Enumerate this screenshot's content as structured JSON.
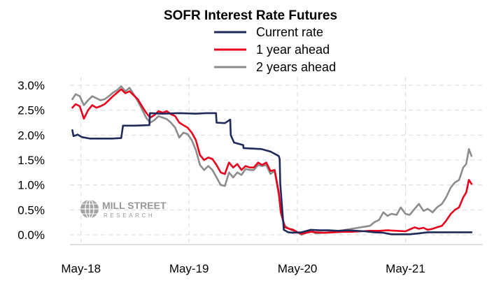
{
  "chart_data": {
    "type": "line",
    "title": "SOFR Interest Rate Futures",
    "xlabel": "",
    "ylabel": "",
    "ylim": [
      0,
      3.0
    ],
    "yticks": [
      "0.0%",
      "0.5%",
      "1.0%",
      "1.5%",
      "2.0%",
      "2.5%",
      "3.0%"
    ],
    "xticks": [
      "May-18",
      "May-19",
      "May-20",
      "May-21"
    ],
    "grid": true,
    "legend": "top-center",
    "series": [
      {
        "name": "Current rate",
        "color": "#1f2a5a",
        "points": [
          [
            "2018-04-02",
            2.1
          ],
          [
            "2018-04-06",
            1.98
          ],
          [
            "2018-04-20",
            2.01
          ],
          [
            "2018-05-04",
            1.96
          ],
          [
            "2018-06-01",
            1.93
          ],
          [
            "2018-07-02",
            1.93
          ],
          [
            "2018-08-15",
            1.93
          ],
          [
            "2018-09-14",
            1.94
          ],
          [
            "2018-09-20",
            2.19
          ],
          [
            "2018-10-31",
            2.19
          ],
          [
            "2018-12-18",
            2.2
          ],
          [
            "2018-12-20",
            2.44
          ],
          [
            "2019-02-01",
            2.43
          ],
          [
            "2019-04-01",
            2.44
          ],
          [
            "2019-05-24",
            2.43
          ],
          [
            "2019-06-28",
            2.44
          ],
          [
            "2019-07-31",
            2.44
          ],
          [
            "2019-08-02",
            2.25
          ],
          [
            "2019-08-30",
            2.24
          ],
          [
            "2019-09-17",
            2.31
          ],
          [
            "2019-09-19",
            2.0
          ],
          [
            "2019-09-30",
            1.85
          ],
          [
            "2019-10-31",
            1.8
          ],
          [
            "2019-11-01",
            1.74
          ],
          [
            "2019-12-31",
            1.72
          ],
          [
            "2020-01-31",
            1.67
          ],
          [
            "2020-02-28",
            1.58
          ],
          [
            "2020-03-02",
            1.52
          ],
          [
            "2020-03-04",
            1.03
          ],
          [
            "2020-03-16",
            0.1
          ],
          [
            "2020-03-31",
            0.05
          ],
          [
            "2020-04-15",
            0.04
          ],
          [
            "2020-05-15",
            0.05
          ],
          [
            "2020-06-15",
            0.1
          ],
          [
            "2020-07-15",
            0.09
          ],
          [
            "2020-08-15",
            0.09
          ],
          [
            "2020-09-15",
            0.08
          ],
          [
            "2020-10-15",
            0.09
          ],
          [
            "2020-11-15",
            0.08
          ],
          [
            "2020-12-15",
            0.07
          ],
          [
            "2021-01-15",
            0.05
          ],
          [
            "2021-02-15",
            0.04
          ],
          [
            "2021-03-15",
            0.01
          ],
          [
            "2021-04-15",
            0.01
          ],
          [
            "2021-05-15",
            0.01
          ],
          [
            "2021-06-15",
            0.03
          ],
          [
            "2021-07-15",
            0.05
          ],
          [
            "2021-08-15",
            0.05
          ],
          [
            "2021-09-15",
            0.05
          ],
          [
            "2021-10-15",
            0.05
          ],
          [
            "2021-11-15",
            0.05
          ],
          [
            "2021-12-10",
            0.05
          ]
        ]
      },
      {
        "name": "1 year ahead",
        "color": "#e8001c",
        "points": [
          [
            "2018-04-02",
            2.55
          ],
          [
            "2018-04-13",
            2.62
          ],
          [
            "2018-04-27",
            2.58
          ],
          [
            "2018-05-11",
            2.33
          ],
          [
            "2018-05-25",
            2.5
          ],
          [
            "2018-06-08",
            2.6
          ],
          [
            "2018-06-22",
            2.55
          ],
          [
            "2018-07-06",
            2.58
          ],
          [
            "2018-07-20",
            2.62
          ],
          [
            "2018-08-03",
            2.7
          ],
          [
            "2018-08-17",
            2.78
          ],
          [
            "2018-08-31",
            2.85
          ],
          [
            "2018-09-14",
            2.92
          ],
          [
            "2018-09-28",
            2.84
          ],
          [
            "2018-10-12",
            2.88
          ],
          [
            "2018-10-26",
            2.8
          ],
          [
            "2018-11-09",
            2.72
          ],
          [
            "2018-11-23",
            2.58
          ],
          [
            "2018-12-07",
            2.45
          ],
          [
            "2018-12-21",
            2.35
          ],
          [
            "2019-01-04",
            2.4
          ],
          [
            "2019-01-18",
            2.48
          ],
          [
            "2019-02-01",
            2.45
          ],
          [
            "2019-02-15",
            2.48
          ],
          [
            "2019-03-01",
            2.42
          ],
          [
            "2019-03-15",
            2.38
          ],
          [
            "2019-03-29",
            2.25
          ],
          [
            "2019-04-12",
            2.2
          ],
          [
            "2019-04-26",
            2.15
          ],
          [
            "2019-05-10",
            2.05
          ],
          [
            "2019-05-24",
            1.9
          ],
          [
            "2019-06-07",
            1.6
          ],
          [
            "2019-06-21",
            1.5
          ],
          [
            "2019-07-05",
            1.55
          ],
          [
            "2019-07-19",
            1.52
          ],
          [
            "2019-08-02",
            1.4
          ],
          [
            "2019-08-16",
            1.25
          ],
          [
            "2019-08-30",
            1.22
          ],
          [
            "2019-09-13",
            1.45
          ],
          [
            "2019-09-27",
            1.35
          ],
          [
            "2019-10-11",
            1.42
          ],
          [
            "2019-10-25",
            1.3
          ],
          [
            "2019-11-08",
            1.38
          ],
          [
            "2019-11-22",
            1.35
          ],
          [
            "2019-12-06",
            1.35
          ],
          [
            "2019-12-20",
            1.45
          ],
          [
            "2020-01-03",
            1.4
          ],
          [
            "2020-01-17",
            1.45
          ],
          [
            "2020-01-31",
            1.28
          ],
          [
            "2020-02-14",
            1.3
          ],
          [
            "2020-02-28",
            0.85
          ],
          [
            "2020-03-06",
            0.45
          ],
          [
            "2020-03-13",
            0.3
          ],
          [
            "2020-03-20",
            0.15
          ],
          [
            "2020-04-03",
            0.12
          ],
          [
            "2020-04-17",
            0.1
          ],
          [
            "2020-05-01",
            0.05
          ],
          [
            "2020-05-15",
            0.02
          ],
          [
            "2020-06-01",
            0.04
          ],
          [
            "2020-06-15",
            0.06
          ],
          [
            "2020-07-01",
            0.05
          ],
          [
            "2020-08-01",
            0.04
          ],
          [
            "2020-09-01",
            0.05
          ],
          [
            "2020-10-01",
            0.06
          ],
          [
            "2020-11-01",
            0.06
          ],
          [
            "2020-12-01",
            0.07
          ],
          [
            "2021-01-01",
            0.08
          ],
          [
            "2021-02-01",
            0.08
          ],
          [
            "2021-03-01",
            0.09
          ],
          [
            "2021-04-01",
            0.08
          ],
          [
            "2021-05-01",
            0.07
          ],
          [
            "2021-06-01",
            0.15
          ],
          [
            "2021-06-15",
            0.12
          ],
          [
            "2021-07-01",
            0.14
          ],
          [
            "2021-07-15",
            0.1
          ],
          [
            "2021-08-01",
            0.12
          ],
          [
            "2021-08-15",
            0.15
          ],
          [
            "2021-09-01",
            0.18
          ],
          [
            "2021-09-15",
            0.28
          ],
          [
            "2021-10-01",
            0.42
          ],
          [
            "2021-10-15",
            0.5
          ],
          [
            "2021-10-29",
            0.55
          ],
          [
            "2021-11-12",
            0.75
          ],
          [
            "2021-11-22",
            0.85
          ],
          [
            "2021-12-01",
            1.1
          ],
          [
            "2021-12-10",
            1.02
          ]
        ]
      },
      {
        "name": "2 years ahead",
        "color": "#8c8c8c",
        "points": [
          [
            "2018-04-02",
            2.72
          ],
          [
            "2018-04-13",
            2.82
          ],
          [
            "2018-04-27",
            2.78
          ],
          [
            "2018-05-11",
            2.6
          ],
          [
            "2018-05-25",
            2.7
          ],
          [
            "2018-06-08",
            2.78
          ],
          [
            "2018-06-22",
            2.74
          ],
          [
            "2018-07-06",
            2.7
          ],
          [
            "2018-07-20",
            2.72
          ],
          [
            "2018-08-03",
            2.78
          ],
          [
            "2018-08-17",
            2.85
          ],
          [
            "2018-08-31",
            2.9
          ],
          [
            "2018-09-14",
            2.98
          ],
          [
            "2018-09-28",
            2.88
          ],
          [
            "2018-10-12",
            2.95
          ],
          [
            "2018-10-26",
            2.82
          ],
          [
            "2018-11-09",
            2.68
          ],
          [
            "2018-11-23",
            2.52
          ],
          [
            "2018-12-07",
            2.35
          ],
          [
            "2018-12-21",
            2.25
          ],
          [
            "2019-01-04",
            2.3
          ],
          [
            "2019-01-18",
            2.38
          ],
          [
            "2019-02-01",
            2.35
          ],
          [
            "2019-02-15",
            2.32
          ],
          [
            "2019-03-01",
            2.25
          ],
          [
            "2019-03-15",
            2.15
          ],
          [
            "2019-03-29",
            1.95
          ],
          [
            "2019-04-12",
            2.05
          ],
          [
            "2019-04-26",
            2.02
          ],
          [
            "2019-05-10",
            1.9
          ],
          [
            "2019-05-24",
            1.7
          ],
          [
            "2019-06-07",
            1.4
          ],
          [
            "2019-06-21",
            1.3
          ],
          [
            "2019-07-05",
            1.38
          ],
          [
            "2019-07-19",
            1.3
          ],
          [
            "2019-08-02",
            1.15
          ],
          [
            "2019-08-16",
            1.0
          ],
          [
            "2019-08-30",
            0.98
          ],
          [
            "2019-09-13",
            1.25
          ],
          [
            "2019-09-27",
            1.15
          ],
          [
            "2019-10-11",
            1.25
          ],
          [
            "2019-10-25",
            1.2
          ],
          [
            "2019-11-08",
            1.32
          ],
          [
            "2019-11-22",
            1.3
          ],
          [
            "2019-12-06",
            1.3
          ],
          [
            "2019-12-20",
            1.4
          ],
          [
            "2020-01-03",
            1.38
          ],
          [
            "2020-01-17",
            1.4
          ],
          [
            "2020-01-31",
            1.22
          ],
          [
            "2020-02-14",
            1.28
          ],
          [
            "2020-02-28",
            0.8
          ],
          [
            "2020-03-06",
            0.5
          ],
          [
            "2020-03-13",
            0.28
          ],
          [
            "2020-03-20",
            0.18
          ],
          [
            "2020-04-03",
            0.12
          ],
          [
            "2020-04-17",
            0.08
          ],
          [
            "2020-05-01",
            0.05
          ],
          [
            "2020-05-15",
            0.0
          ],
          [
            "2020-06-01",
            0.05
          ],
          [
            "2020-06-15",
            0.1
          ],
          [
            "2020-07-01",
            0.03
          ],
          [
            "2020-08-01",
            0.04
          ],
          [
            "2020-09-01",
            0.06
          ],
          [
            "2020-10-01",
            0.09
          ],
          [
            "2020-11-01",
            0.12
          ],
          [
            "2020-12-01",
            0.15
          ],
          [
            "2021-01-01",
            0.18
          ],
          [
            "2021-01-15",
            0.25
          ],
          [
            "2021-02-01",
            0.3
          ],
          [
            "2021-02-15",
            0.45
          ],
          [
            "2021-03-01",
            0.38
          ],
          [
            "2021-03-15",
            0.42
          ],
          [
            "2021-04-01",
            0.4
          ],
          [
            "2021-04-15",
            0.55
          ],
          [
            "2021-05-01",
            0.42
          ],
          [
            "2021-05-15",
            0.4
          ],
          [
            "2021-06-01",
            0.52
          ],
          [
            "2021-06-15",
            0.62
          ],
          [
            "2021-07-01",
            0.48
          ],
          [
            "2021-07-15",
            0.52
          ],
          [
            "2021-08-01",
            0.45
          ],
          [
            "2021-08-15",
            0.55
          ],
          [
            "2021-09-01",
            0.62
          ],
          [
            "2021-09-15",
            0.75
          ],
          [
            "2021-10-01",
            0.95
          ],
          [
            "2021-10-15",
            1.05
          ],
          [
            "2021-10-29",
            1.1
          ],
          [
            "2021-11-12",
            1.35
          ],
          [
            "2021-11-22",
            1.42
          ],
          [
            "2021-12-01",
            1.72
          ],
          [
            "2021-12-10",
            1.58
          ]
        ]
      }
    ]
  },
  "watermark": {
    "line1": "MILL STREET",
    "line2": "RESEARCH"
  }
}
